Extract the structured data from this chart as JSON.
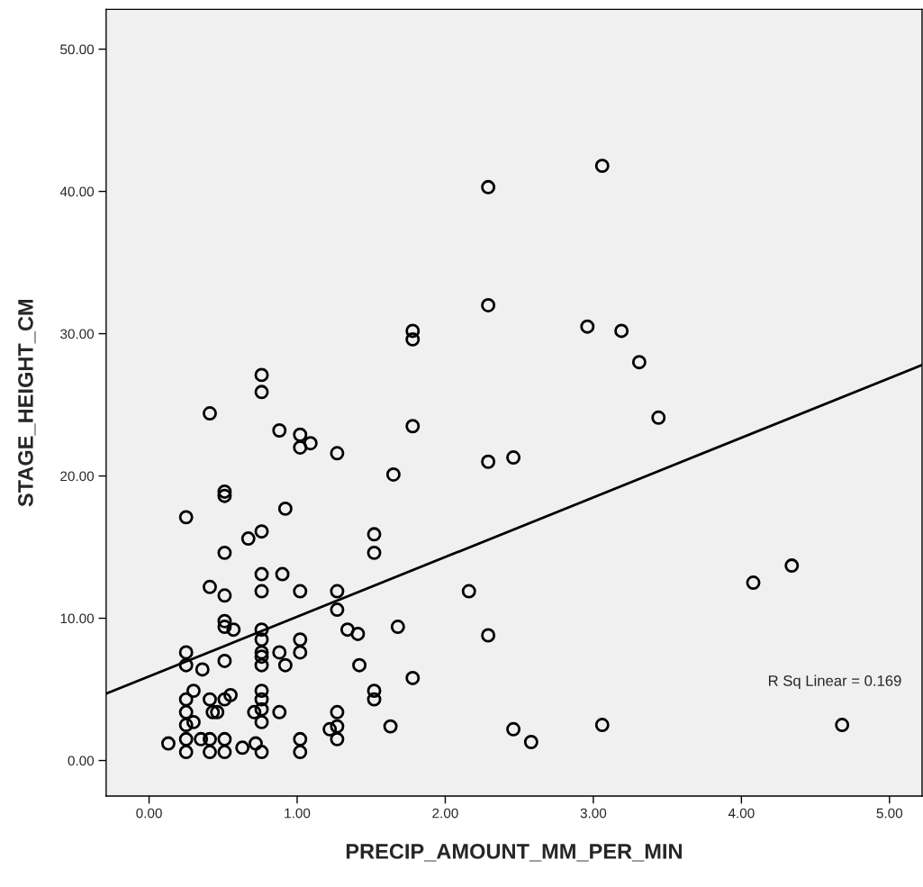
{
  "chart_data": {
    "type": "scatter",
    "xlabel": "PRECIP_AMOUNT_MM_PER_MIN",
    "ylabel": "STAGE_HEIGHT_CM",
    "xlim": [
      -0.29,
      5.22
    ],
    "ylim": [
      -2.5,
      52.8
    ],
    "xticks": [
      {
        "value": 0,
        "label": "0.00"
      },
      {
        "value": 1,
        "label": "1.00"
      },
      {
        "value": 2,
        "label": "2.00"
      },
      {
        "value": 3,
        "label": "3.00"
      },
      {
        "value": 4,
        "label": "4.00"
      },
      {
        "value": 5,
        "label": "5.00"
      }
    ],
    "yticks": [
      {
        "value": 0,
        "label": "0.00"
      },
      {
        "value": 10,
        "label": "10.00"
      },
      {
        "value": 20,
        "label": "20.00"
      },
      {
        "value": 30,
        "label": "30.00"
      },
      {
        "value": 40,
        "label": "40.00"
      },
      {
        "value": 50,
        "label": "50.00"
      }
    ],
    "grid": false,
    "legend": false,
    "annotations": [
      "R Sq Linear = 0.169"
    ],
    "series": [
      {
        "color": "#000000",
        "marker": "circle",
        "x": [
          0.13,
          0.25,
          0.25,
          0.25,
          0.25,
          0.25,
          0.25,
          0.25,
          0.25,
          0.3,
          0.3,
          0.36,
          0.35,
          0.41,
          0.41,
          0.41,
          0.41,
          0.41,
          0.43,
          0.46,
          0.51,
          0.51,
          0.51,
          0.51,
          0.51,
          0.51,
          0.51,
          0.51,
          0.51,
          0.51,
          0.55,
          0.57,
          0.63,
          0.67,
          0.71,
          0.72,
          0.76,
          0.76,
          0.76,
          0.76,
          0.76,
          0.76,
          0.76,
          0.76,
          0.76,
          0.76,
          0.76,
          0.76,
          0.76,
          0.76,
          0.76,
          0.88,
          0.88,
          0.88,
          0.9,
          0.92,
          0.92,
          1.02,
          1.02,
          1.02,
          1.02,
          1.02,
          1.02,
          1.02,
          1.09,
          1.22,
          1.27,
          1.27,
          1.27,
          1.27,
          1.27,
          1.27,
          1.34,
          1.41,
          1.42,
          1.52,
          1.52,
          1.52,
          1.52,
          1.63,
          1.65,
          1.68,
          1.78,
          1.78,
          1.78,
          1.78,
          2.16,
          2.29,
          2.29,
          2.29,
          2.29,
          2.46,
          2.46,
          2.58,
          2.96,
          3.06,
          3.06,
          3.19,
          3.31,
          3.44,
          4.08,
          4.34,
          4.68
        ],
        "values": [
          1.2,
          17.1,
          7.6,
          6.7,
          4.3,
          3.4,
          2.5,
          1.5,
          0.6,
          4.9,
          2.7,
          6.4,
          1.5,
          24.4,
          12.2,
          4.3,
          1.5,
          0.6,
          3.4,
          3.4,
          18.9,
          18.6,
          14.6,
          11.6,
          9.8,
          9.4,
          7.0,
          4.3,
          1.5,
          0.6,
          4.6,
          9.2,
          0.9,
          15.6,
          3.4,
          1.2,
          27.1,
          25.9,
          16.1,
          13.1,
          11.9,
          9.2,
          8.5,
          7.6,
          7.3,
          6.7,
          4.9,
          4.3,
          3.6,
          2.7,
          0.6,
          23.2,
          7.6,
          3.4,
          13.1,
          17.7,
          6.7,
          22.9,
          22.0,
          11.9,
          8.5,
          7.6,
          1.5,
          0.6,
          22.3,
          2.2,
          21.6,
          11.9,
          10.6,
          3.4,
          2.4,
          1.5,
          9.2,
          8.9,
          6.7,
          15.9,
          14.6,
          4.9,
          4.3,
          2.4,
          20.1,
          9.4,
          30.2,
          29.6,
          23.5,
          5.8,
          11.9,
          40.3,
          32.0,
          21.0,
          8.8,
          21.3,
          2.2,
          1.3,
          30.5,
          41.8,
          2.5,
          30.2,
          28.0,
          24.1,
          12.5,
          13.7,
          2.5
        ]
      },
      {
        "type": "line",
        "color": "#000000",
        "x": [
          -0.29,
          5.22
        ],
        "values": [
          4.7,
          27.8
        ]
      }
    ]
  }
}
